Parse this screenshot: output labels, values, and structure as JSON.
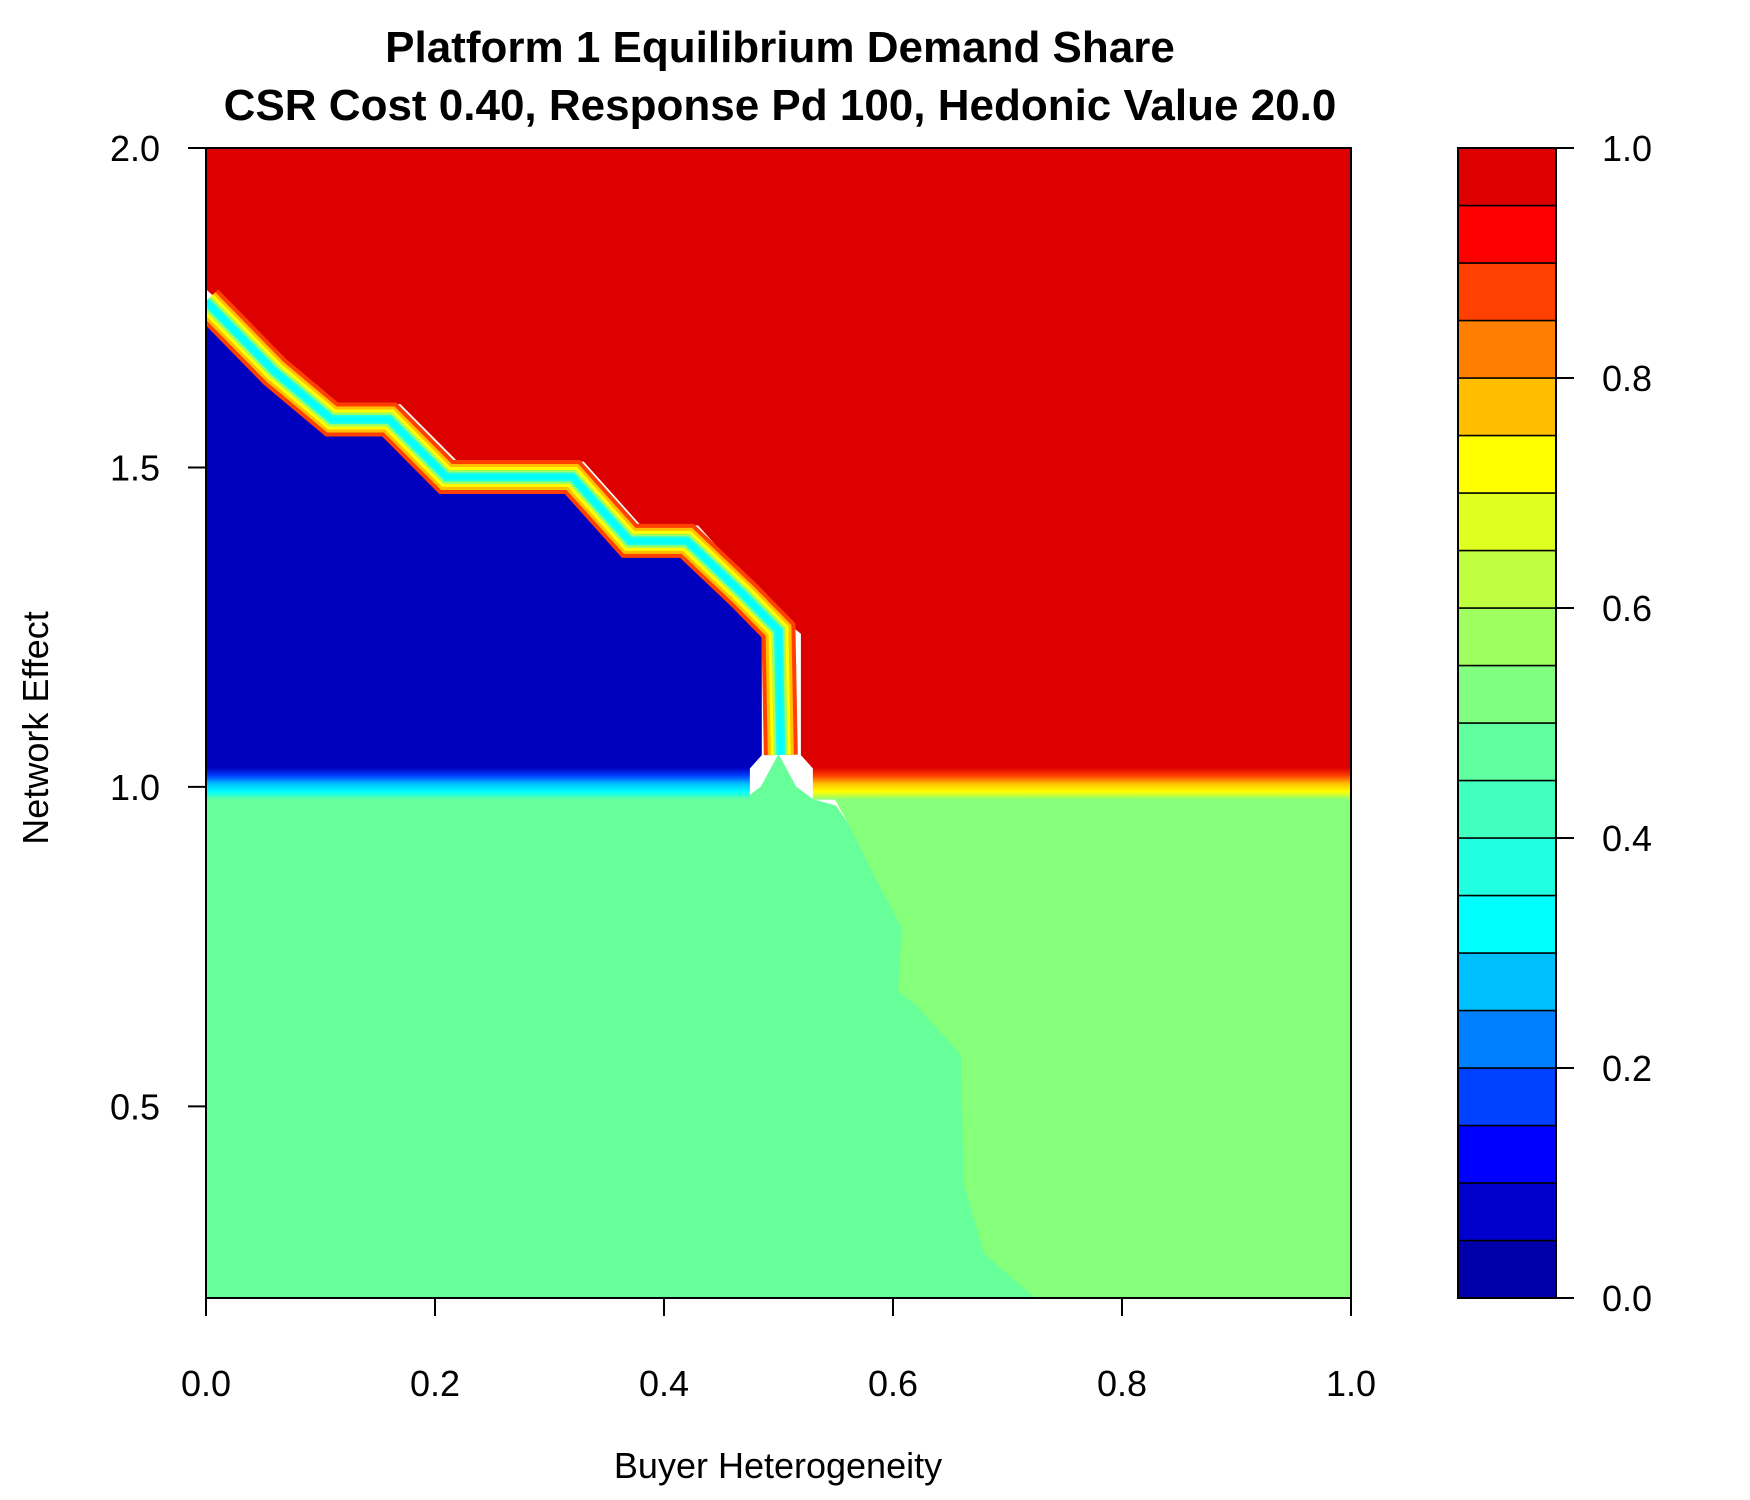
{
  "chart_data": {
    "type": "heatmap",
    "title": "Platform 1 Equilibrium Demand Share",
    "subtitle": "CSR Cost 0.40, Response Pd 100, Hedonic Value 20.0",
    "xlabel": "Buyer Heterogeneity",
    "ylabel": "Network Effect",
    "xlim": [
      0.0,
      1.0
    ],
    "ylim": [
      0.2,
      2.0
    ],
    "x_ticks": [
      "0.0",
      "0.2",
      "0.4",
      "0.6",
      "0.8",
      "1.0"
    ],
    "y_ticks": [
      "0.5",
      "1.0",
      "1.5",
      "2.0"
    ],
    "legend": {
      "placement": "right",
      "range": [
        0.0,
        1.0
      ],
      "tick_labels": [
        "0.0",
        "0.2",
        "0.4",
        "0.6",
        "0.8",
        "1.0"
      ],
      "levels": [
        {
          "from": 0.0,
          "to": 0.05,
          "color": "#0000AA"
        },
        {
          "from": 0.05,
          "to": 0.1,
          "color": "#0000CC"
        },
        {
          "from": 0.1,
          "to": 0.15,
          "color": "#0000FF"
        },
        {
          "from": 0.15,
          "to": 0.2,
          "color": "#0040FF"
        },
        {
          "from": 0.2,
          "to": 0.25,
          "color": "#0080FF"
        },
        {
          "from": 0.25,
          "to": 0.3,
          "color": "#00BFFF"
        },
        {
          "from": 0.3,
          "to": 0.35,
          "color": "#00FFFF"
        },
        {
          "from": 0.35,
          "to": 0.4,
          "color": "#20FFDF"
        },
        {
          "from": 0.4,
          "to": 0.45,
          "color": "#40FFBF"
        },
        {
          "from": 0.45,
          "to": 0.5,
          "color": "#60FF9F"
        },
        {
          "from": 0.5,
          "to": 0.55,
          "color": "#80FF80"
        },
        {
          "from": 0.55,
          "to": 0.6,
          "color": "#9FFF60"
        },
        {
          "from": 0.6,
          "to": 0.65,
          "color": "#BFFF40"
        },
        {
          "from": 0.65,
          "to": 0.7,
          "color": "#DFFF20"
        },
        {
          "from": 0.7,
          "to": 0.75,
          "color": "#FFFF00"
        },
        {
          "from": 0.75,
          "to": 0.8,
          "color": "#FFBF00"
        },
        {
          "from": 0.8,
          "to": 0.85,
          "color": "#FF8000"
        },
        {
          "from": 0.85,
          "to": 0.9,
          "color": "#FF4000"
        },
        {
          "from": 0.9,
          "to": 0.95,
          "color": "#FF0000"
        },
        {
          "from": 0.95,
          "to": 1.0,
          "color": "#DD0000"
        }
      ]
    },
    "regions": [
      {
        "name": "low-network-left",
        "value": 0.47,
        "color": "#66FF99",
        "polygon": [
          [
            0.0,
            0.2
          ],
          [
            0.725,
            0.2
          ],
          [
            0.68,
            0.27
          ],
          [
            0.662,
            0.38
          ],
          [
            0.66,
            0.58
          ],
          [
            0.62,
            0.66
          ],
          [
            0.605,
            0.68
          ],
          [
            0.608,
            0.78
          ],
          [
            0.59,
            0.84
          ],
          [
            0.565,
            0.93
          ],
          [
            0.55,
            0.97
          ],
          [
            0.53,
            0.98
          ],
          [
            0.515,
            1.0
          ],
          [
            0.5,
            1.05
          ],
          [
            0.485,
            1.0
          ],
          [
            0.47,
            0.98
          ],
          [
            0.0,
            0.98
          ]
        ]
      },
      {
        "name": "low-network-right",
        "value": 0.53,
        "color": "#86FF7A",
        "polygon": [
          [
            0.725,
            0.2
          ],
          [
            1.0,
            0.2
          ],
          [
            1.0,
            0.98
          ],
          [
            0.55,
            0.98
          ],
          [
            0.565,
            0.93
          ],
          [
            0.59,
            0.84
          ],
          [
            0.608,
            0.78
          ],
          [
            0.605,
            0.68
          ],
          [
            0.62,
            0.66
          ],
          [
            0.66,
            0.58
          ],
          [
            0.662,
            0.38
          ],
          [
            0.68,
            0.27
          ]
        ]
      },
      {
        "name": "high-network-monopoly",
        "value": 1.0,
        "color": "#DD0000",
        "polygon": [
          [
            0.0,
            2.0
          ],
          [
            1.0,
            2.0
          ],
          [
            1.0,
            1.03
          ],
          [
            0.53,
            1.03
          ],
          [
            0.52,
            1.05
          ],
          [
            0.52,
            1.24
          ],
          [
            0.5,
            1.27
          ],
          [
            0.43,
            1.41
          ],
          [
            0.38,
            1.41
          ],
          [
            0.33,
            1.51
          ],
          [
            0.22,
            1.51
          ],
          [
            0.17,
            1.6
          ],
          [
            0.11,
            1.6
          ],
          [
            0.0,
            1.78
          ]
        ]
      },
      {
        "name": "high-network-zero-share",
        "value": 0.0,
        "color": "#0000BF",
        "polygon": [
          [
            0.0,
            1.03
          ],
          [
            0.475,
            1.03
          ],
          [
            0.485,
            1.05
          ],
          [
            0.485,
            1.24
          ],
          [
            0.42,
            1.36
          ],
          [
            0.37,
            1.36
          ],
          [
            0.32,
            1.46
          ],
          [
            0.21,
            1.46
          ],
          [
            0.16,
            1.55
          ],
          [
            0.11,
            1.55
          ],
          [
            0.06,
            1.63
          ],
          [
            0.0,
            1.74
          ]
        ]
      }
    ],
    "transitions": [
      {
        "name": "staircase-edge",
        "points": [
          [
            0.0,
            1.76
          ],
          [
            0.06,
            1.65
          ],
          [
            0.11,
            1.575
          ],
          [
            0.16,
            1.575
          ],
          [
            0.21,
            1.485
          ],
          [
            0.32,
            1.485
          ],
          [
            0.37,
            1.385
          ],
          [
            0.42,
            1.385
          ],
          [
            0.47,
            1.3
          ],
          [
            0.5,
            1.245
          ],
          [
            0.502,
            1.05
          ]
        ]
      },
      {
        "name": "horizontal-edge",
        "points": [
          [
            0.0,
            1.005
          ],
          [
            1.0,
            1.005
          ]
        ]
      }
    ]
  }
}
